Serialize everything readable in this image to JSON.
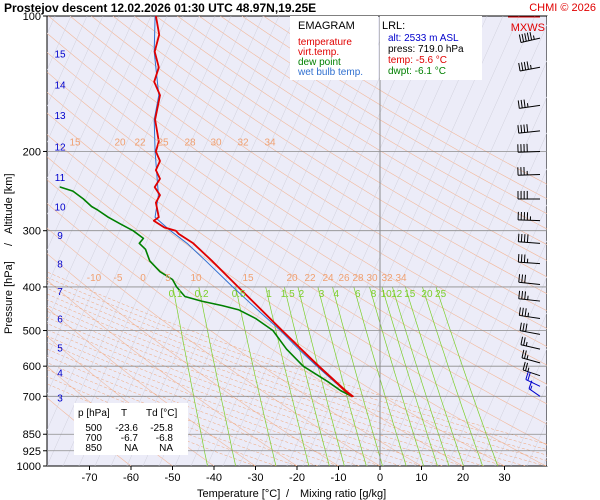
{
  "header": {
    "title": "Prostejov   descent   12.02.2026 01:30 UTC  48.97N,19.25E",
    "copyright": "CHMI © 2026"
  },
  "chart_data": {
    "type": "line",
    "xlabel": "Temperature [°C]",
    "xlabel_sep": "/",
    "xlabel2": "Mixing ratio [g/kg]",
    "ylabel": "Pressure [hPa]",
    "ylabel_sep": "/",
    "ylabel2": "Altitude [km]",
    "xlim": [
      -80,
      40
    ],
    "ylim": [
      1000,
      100
    ],
    "y_scale": "log",
    "x_ticks": [
      -70,
      -60,
      -50,
      -40,
      -30,
      -20,
      -10,
      0,
      10,
      20,
      30
    ],
    "pressure_ticks": [
      100,
      200,
      300,
      400,
      500,
      600,
      700,
      850,
      925,
      1000
    ],
    "altitude_ticks": [
      {
        "km": "3",
        "p": 705
      },
      {
        "km": "4",
        "p": 620
      },
      {
        "km": "5",
        "p": 545
      },
      {
        "km": "6",
        "p": 470
      },
      {
        "km": "7",
        "p": 408
      },
      {
        "km": "8",
        "p": 355
      },
      {
        "km": "9",
        "p": 307
      },
      {
        "km": "10",
        "p": 265
      },
      {
        "km": "11",
        "p": 228
      },
      {
        "km": "12",
        "p": 195
      },
      {
        "km": "13",
        "p": 166
      },
      {
        "km": "14",
        "p": 142
      },
      {
        "km": "15",
        "p": 121
      }
    ],
    "mixing_ratio_labels": [
      "0.1",
      "0.2",
      "0.5",
      "1",
      "1.5",
      "2",
      "3",
      "4",
      "6",
      "8",
      "10",
      "12",
      "15",
      "20",
      "25"
    ],
    "mixing_ratio_values": [
      0.1,
      0.2,
      0.5,
      1,
      1.5,
      2,
      3,
      4,
      6,
      8,
      10,
      12,
      15,
      20,
      25
    ],
    "theta_labels_200": [
      "15",
      "20",
      "22",
      "25",
      "28",
      "30",
      "32",
      "34"
    ],
    "theta_labels_400": [
      "-10",
      "-5",
      "0",
      "5",
      "10",
      "15",
      "20",
      "22",
      "24",
      "26",
      "28",
      "30",
      "32",
      "34"
    ],
    "grid": true,
    "legend": {
      "title": "EMAGRAM",
      "items": [
        {
          "label": "temperature",
          "color": "#e00000"
        },
        {
          "label": "virt.temp.",
          "color": "#e00000"
        },
        {
          "label": "dew point",
          "color": "#008000"
        },
        {
          "label": "wet bulb temp.",
          "color": "#3070d0"
        }
      ]
    },
    "series": [
      {
        "name": "temperature",
        "color": "#e00000",
        "points": [
          [
            700,
            -6.7
          ],
          [
            680,
            -8.5
          ],
          [
            650,
            -10.7
          ],
          [
            600,
            -14.8
          ],
          [
            550,
            -19.0
          ],
          [
            500,
            -23.6
          ],
          [
            450,
            -28.6
          ],
          [
            400,
            -34.2
          ],
          [
            350,
            -40.5
          ],
          [
            320,
            -45.0
          ],
          [
            305,
            -48.5
          ],
          [
            300,
            -49.2
          ],
          [
            295,
            -52.0
          ],
          [
            285,
            -54.5
          ],
          [
            280,
            -53.3
          ],
          [
            260,
            -54.0
          ],
          [
            250,
            -53.0
          ],
          [
            240,
            -54.3
          ],
          [
            230,
            -53.0
          ],
          [
            220,
            -54.0
          ],
          [
            210,
            -53.0
          ],
          [
            200,
            -54.0
          ],
          [
            190,
            -53.3
          ],
          [
            170,
            -54.2
          ],
          [
            150,
            -53.0
          ],
          [
            140,
            -54.4
          ],
          [
            130,
            -53.3
          ],
          [
            120,
            -54.3
          ],
          [
            110,
            -53.2
          ],
          [
            100,
            -54.0
          ]
        ]
      },
      {
        "name": "virt.temp.",
        "color": "#e00000",
        "points": [
          [
            700,
            -6.4
          ],
          [
            680,
            -8.2
          ],
          [
            650,
            -10.5
          ],
          [
            600,
            -14.6
          ],
          [
            550,
            -18.9
          ],
          [
            500,
            -23.5
          ],
          [
            450,
            -28.5
          ],
          [
            400,
            -34.2
          ],
          [
            350,
            -40.5
          ],
          [
            320,
            -45.0
          ],
          [
            305,
            -48.5
          ],
          [
            300,
            -49.2
          ],
          [
            295,
            -52.0
          ],
          [
            285,
            -54.5
          ],
          [
            280,
            -53.3
          ],
          [
            260,
            -54.0
          ],
          [
            250,
            -53.0
          ],
          [
            240,
            -54.3
          ],
          [
            230,
            -53.0
          ],
          [
            220,
            -54.0
          ],
          [
            210,
            -53.0
          ],
          [
            200,
            -54.0
          ],
          [
            190,
            -53.3
          ],
          [
            170,
            -54.2
          ],
          [
            150,
            -53.0
          ],
          [
            140,
            -54.4
          ],
          [
            130,
            -53.3
          ],
          [
            120,
            -54.3
          ],
          [
            110,
            -53.2
          ],
          [
            100,
            -54.0
          ]
        ]
      },
      {
        "name": "dew point",
        "color": "#008000",
        "points": [
          [
            700,
            -6.8
          ],
          [
            680,
            -9.5
          ],
          [
            650,
            -12.5
          ],
          [
            600,
            -18.5
          ],
          [
            550,
            -22.5
          ],
          [
            500,
            -25.8
          ],
          [
            470,
            -30.0
          ],
          [
            450,
            -34.0
          ],
          [
            440,
            -38.0
          ],
          [
            430,
            -43.0
          ],
          [
            420,
            -47.0
          ],
          [
            400,
            -49.0
          ],
          [
            385,
            -50.0
          ],
          [
            370,
            -53.0
          ],
          [
            350,
            -55.5
          ],
          [
            330,
            -56.5
          ],
          [
            320,
            -58.0
          ],
          [
            312,
            -57.0
          ],
          [
            300,
            -59.5
          ],
          [
            290,
            -62.5
          ],
          [
            280,
            -65.5
          ],
          [
            270,
            -68.0
          ],
          [
            265,
            -69.5
          ],
          [
            255,
            -71.5
          ],
          [
            245,
            -74.0
          ],
          [
            240,
            -77.0
          ]
        ]
      },
      {
        "name": "wet bulb temp.",
        "color": "#3070d0",
        "points": [
          [
            700,
            -6.7
          ],
          [
            650,
            -11.0
          ],
          [
            600,
            -15.2
          ],
          [
            550,
            -19.6
          ],
          [
            500,
            -24.0
          ],
          [
            450,
            -29.5
          ],
          [
            400,
            -35.5
          ],
          [
            350,
            -42.0
          ],
          [
            320,
            -46.5
          ],
          [
            300,
            -50.5
          ],
          [
            280,
            -54.2
          ],
          [
            250,
            -53.4
          ],
          [
            200,
            -54.2
          ],
          [
            170,
            -54.4
          ],
          [
            150,
            -53.3
          ],
          [
            120,
            -54.4
          ],
          [
            100,
            -54.2
          ]
        ]
      }
    ]
  },
  "info_box": {
    "title": "LRL:",
    "alt": "alt: 2533 m ASL",
    "press": "press: 719.0 hPa",
    "temp": "temp: -5.6 °C",
    "dwpt": "dwpt: -6.1 °C"
  },
  "data_table": {
    "headers": [
      "p [hPa]",
      "T",
      "Td [°C]"
    ],
    "rows": [
      [
        "500",
        "-23.6",
        "-25.8"
      ],
      [
        "700",
        "-6.7",
        "-6.8"
      ],
      [
        "850",
        "NA",
        "NA"
      ]
    ]
  },
  "wind_panel": {
    "label": "MXWS",
    "levels": [
      {
        "p": 112,
        "dir": 240,
        "spd": 55
      },
      {
        "p": 130,
        "dir": 245,
        "spd": 45
      },
      {
        "p": 158,
        "dir": 250,
        "spd": 35
      },
      {
        "p": 180,
        "dir": 255,
        "spd": 40
      },
      {
        "p": 200,
        "dir": 265,
        "spd": 40
      },
      {
        "p": 225,
        "dir": 265,
        "spd": 35
      },
      {
        "p": 255,
        "dir": 270,
        "spd": 40
      },
      {
        "p": 285,
        "dir": 275,
        "spd": 45
      },
      {
        "p": 320,
        "dir": 280,
        "spd": 40
      },
      {
        "p": 355,
        "dir": 280,
        "spd": 35
      },
      {
        "p": 395,
        "dir": 285,
        "spd": 30
      },
      {
        "p": 430,
        "dir": 285,
        "spd": 35
      },
      {
        "p": 470,
        "dir": 290,
        "spd": 35
      },
      {
        "p": 510,
        "dir": 295,
        "spd": 30
      },
      {
        "p": 550,
        "dir": 300,
        "spd": 25
      },
      {
        "p": 590,
        "dir": 305,
        "spd": 25
      },
      {
        "p": 630,
        "dir": 310,
        "spd": 25
      },
      {
        "p": 665,
        "dir": 320,
        "spd": 20
      },
      {
        "p": 700,
        "dir": 330,
        "spd": 15
      }
    ]
  }
}
